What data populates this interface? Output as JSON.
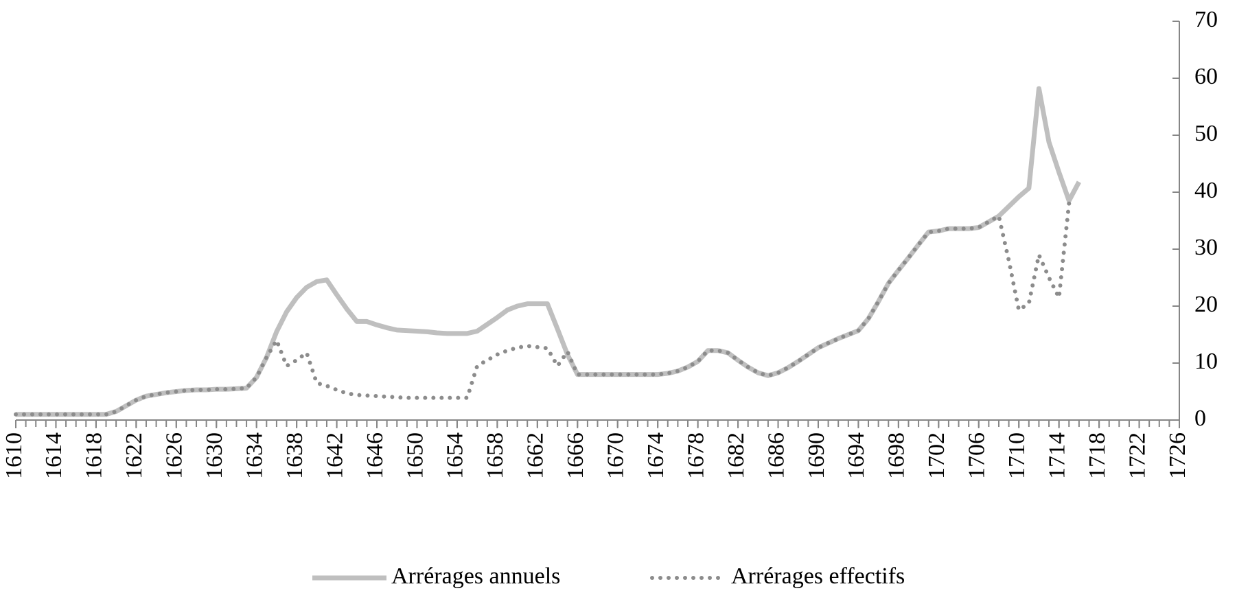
{
  "chart_data": {
    "type": "line",
    "x": [
      1610,
      1611,
      1612,
      1613,
      1614,
      1615,
      1616,
      1617,
      1618,
      1619,
      1620,
      1621,
      1622,
      1623,
      1624,
      1625,
      1626,
      1627,
      1628,
      1629,
      1630,
      1631,
      1632,
      1633,
      1634,
      1635,
      1636,
      1637,
      1638,
      1639,
      1640,
      1641,
      1642,
      1643,
      1644,
      1645,
      1646,
      1647,
      1648,
      1649,
      1650,
      1651,
      1652,
      1653,
      1654,
      1655,
      1656,
      1657,
      1658,
      1659,
      1660,
      1661,
      1662,
      1663,
      1664,
      1665,
      1666,
      1667,
      1668,
      1669,
      1670,
      1671,
      1672,
      1673,
      1674,
      1675,
      1676,
      1677,
      1678,
      1679,
      1680,
      1681,
      1682,
      1683,
      1684,
      1685,
      1686,
      1687,
      1688,
      1689,
      1690,
      1691,
      1692,
      1693,
      1694,
      1695,
      1696,
      1697,
      1698,
      1699,
      1700,
      1701,
      1702,
      1703,
      1704,
      1705,
      1706,
      1707,
      1708,
      1709,
      1710,
      1711,
      1712,
      1713,
      1714,
      1715,
      1716
    ],
    "series": [
      {
        "name": "Arrérages annuels",
        "color": "#bfbfbf",
        "style": "solid",
        "values": [
          1,
          1,
          1,
          1,
          1,
          1,
          1,
          1,
          1,
          1,
          1.5,
          2.5,
          3.5,
          4.2,
          4.5,
          4.8,
          5,
          5.2,
          5.3,
          5.3,
          5.4,
          5.4,
          5.5,
          5.6,
          7.5,
          11,
          15.5,
          19,
          21.5,
          23.3,
          24.3,
          24.6,
          22,
          19.5,
          17.3,
          17.3,
          16.7,
          16.2,
          15.8,
          15.7,
          15.6,
          15.5,
          15.3,
          15.2,
          15.2,
          15.2,
          15.6,
          16.8,
          18,
          19.3,
          20,
          20.4,
          20.4,
          20.4,
          16,
          11.5,
          8,
          8,
          8,
          8,
          8,
          8,
          8,
          8,
          8,
          8.2,
          8.6,
          9.3,
          10.3,
          12.2,
          12.2,
          11.8,
          10.5,
          9.3,
          8.3,
          7.8,
          8.3,
          9.2,
          10.3,
          11.5,
          12.7,
          13.5,
          14.3,
          15,
          15.7,
          17.8,
          20.8,
          24,
          26.3,
          28.5,
          30.8,
          33,
          33.2,
          33.6,
          33.6,
          33.6,
          33.8,
          34.8,
          35.8,
          37.5,
          39.2,
          40.7,
          58.2,
          48.8,
          43.5,
          38.5,
          41.8
        ]
      },
      {
        "name": "Arrérages effectifs",
        "color": "#8c8c8c",
        "style": "dotted",
        "values": [
          1,
          1,
          1,
          1,
          1,
          1,
          1,
          1,
          1,
          1,
          1.5,
          2.5,
          3.5,
          4.2,
          4.5,
          4.8,
          5,
          5.2,
          5.3,
          5.3,
          5.4,
          5.4,
          5.5,
          5.6,
          7.5,
          11,
          14,
          9.5,
          10.5,
          11.8,
          6.5,
          6,
          5.3,
          4.7,
          4.4,
          4.3,
          4.2,
          4.1,
          4,
          3.9,
          3.9,
          3.9,
          3.9,
          3.9,
          3.9,
          3.9,
          9.5,
          10.5,
          11.5,
          12.2,
          12.7,
          13,
          12.8,
          12.6,
          9.5,
          12,
          8,
          8,
          8,
          8,
          8,
          8,
          8,
          8,
          8,
          8.2,
          8.6,
          9.3,
          10.3,
          12.2,
          12.2,
          11.8,
          10.5,
          9.3,
          8.3,
          7.8,
          8.3,
          9.2,
          10.3,
          11.5,
          12.7,
          13.5,
          14.3,
          15,
          15.7,
          17.8,
          20.8,
          24,
          26.3,
          28.5,
          30.8,
          33,
          33.2,
          33.6,
          33.6,
          33.6,
          33.8,
          34.8,
          35.8,
          28,
          19.3,
          20.5,
          29,
          25,
          21.5,
          38,
          null
        ]
      }
    ],
    "xlim": [
      1610,
      1726
    ],
    "xticks": [
      1610,
      1614,
      1618,
      1622,
      1626,
      1630,
      1634,
      1638,
      1642,
      1646,
      1650,
      1654,
      1658,
      1662,
      1666,
      1670,
      1674,
      1678,
      1682,
      1686,
      1690,
      1694,
      1698,
      1702,
      1706,
      1710,
      1714,
      1718,
      1722,
      1726
    ],
    "ylim": [
      0,
      70
    ],
    "yticks": [
      0,
      10,
      20,
      30,
      40,
      50,
      60,
      70
    ],
    "y_axis_side": "right",
    "legend": "bottom"
  }
}
